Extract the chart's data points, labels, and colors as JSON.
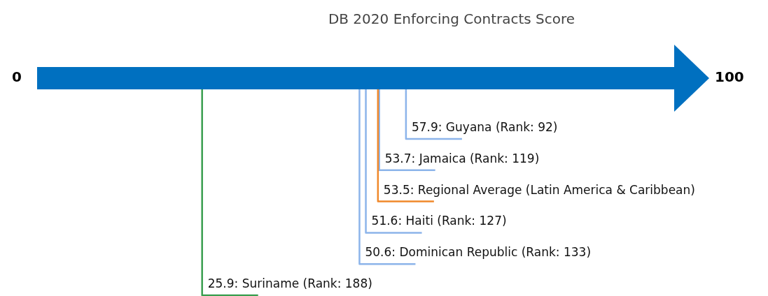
{
  "chart_data": {
    "type": "other",
    "title": "DB 2020 Enforcing Contracts Score",
    "values": [
      57.9,
      53.7,
      53.5,
      51.6,
      50.6,
      25.9
    ],
    "value_labels": [
      "57.9: Guyana (Rank: 92)",
      "53.7: Jamaica (Rank: 119)",
      "53.5: Regional Average (Latin America & Caribbean)",
      "51.6: Haiti (Rank: 127)",
      "50.6: Dominican Republic (Rank: 133)",
      "25.9: Suriname (Rank: 188)"
    ],
    "colors": [
      "#8cb4ea",
      "#8cb4ea",
      "#f0882a",
      "#8cb4ea",
      "#8cb4ea",
      "#3a9e4f"
    ],
    "annotations": [
      "0",
      "100"
    ]
  }
}
